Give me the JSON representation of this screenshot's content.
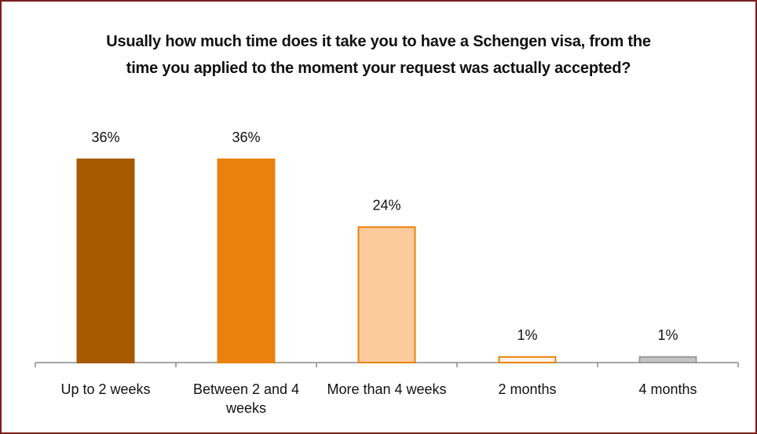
{
  "chart_data": {
    "type": "bar",
    "title": "Usually how much time does it take you to have a Schengen visa, from the time you applied to the moment your request was actually accepted?",
    "categories": [
      "Up to 2 weeks",
      "Between 2 and 4 weeks",
      "More than 4 weeks",
      "2 months",
      "4 months"
    ],
    "values": [
      36,
      36,
      24,
      1,
      1
    ],
    "value_labels": [
      "36%",
      "36%",
      "24%",
      "1%",
      "1%"
    ],
    "colors": [
      "#a65a00",
      "#e8820c",
      "#fccb9c",
      "#fff3e6",
      "#c4c4c4"
    ],
    "edge_colors": [
      "#a65a00",
      "#e8820c",
      "#e8820c",
      "#e8820c",
      "#9a9a9a"
    ]
  }
}
